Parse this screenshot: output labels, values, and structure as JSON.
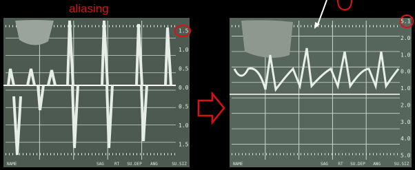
{
  "annotation": "aliasing",
  "left_panel": {
    "scale_labels": [
      "1.5",
      "1.0",
      "0.5",
      "0.0",
      "0.5",
      "1.0",
      "1.5"
    ],
    "footer_labels": [
      "NAME",
      "SAG",
      "RT",
      "SU.DEP",
      "ANG",
      "SU.SIZ"
    ]
  },
  "right_panel": {
    "scale_labels": [
      "5.1",
      "2.0",
      "1.0",
      "0.0",
      "1.0",
      "2.0",
      "3.0",
      "4.0",
      "5.0"
    ],
    "footer_labels": [
      "NAME",
      "SAG",
      "RT",
      "SU.DEP",
      "ANG",
      "SU.SIZ"
    ]
  }
}
